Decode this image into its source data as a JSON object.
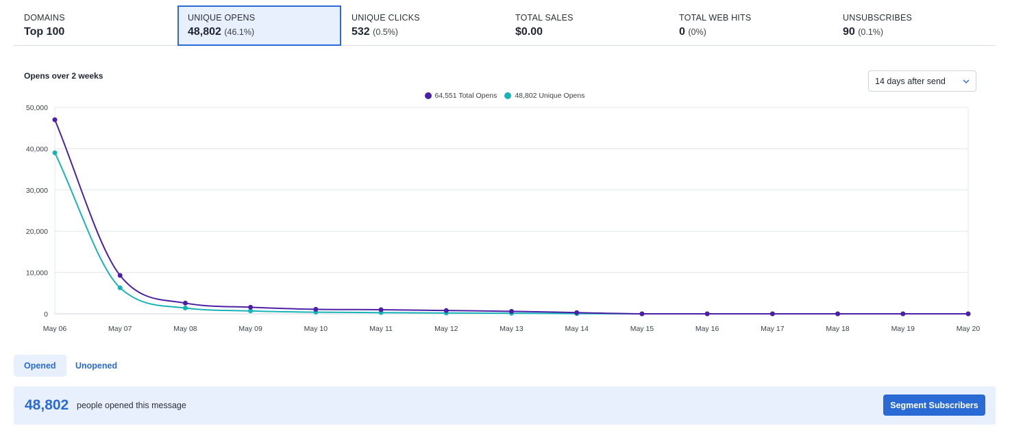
{
  "stats": [
    {
      "label": "DOMAINS",
      "value": "Top 100",
      "pct": ""
    },
    {
      "label": "UNIQUE OPENS",
      "value": "48,802",
      "pct": "(46.1%)"
    },
    {
      "label": "UNIQUE CLICKS",
      "value": "532",
      "pct": "(0.5%)"
    },
    {
      "label": "TOTAL SALES",
      "value": "$0.00",
      "pct": ""
    },
    {
      "label": "TOTAL WEB HITS",
      "value": "0",
      "pct": "(0%)"
    },
    {
      "label": "UNSUBSCRIBES",
      "value": "90",
      "pct": "(0.1%)"
    }
  ],
  "active_stat": "UNIQUE OPENS",
  "chart_panel": {
    "title": "Opens over 2 weeks",
    "range_select": {
      "selected": "14 days after send",
      "icon": "chevron-down-icon"
    }
  },
  "chart_data": {
    "type": "line",
    "x": [
      "May 06",
      "May 07",
      "May 08",
      "May 09",
      "May 10",
      "May 11",
      "May 12",
      "May 13",
      "May 14",
      "May 15",
      "May 16",
      "May 17",
      "May 18",
      "May 19",
      "May 20"
    ],
    "series": [
      {
        "name": "64,551 Total Opens",
        "color": "#4b1fa6",
        "values": [
          47000,
          9300,
          2600,
          1600,
          1100,
          1000,
          800,
          600,
          300,
          0,
          0,
          0,
          0,
          0,
          0
        ]
      },
      {
        "name": "48,802 Unique Opens",
        "color": "#17b3b8",
        "values": [
          39000,
          6300,
          1400,
          700,
          400,
          300,
          200,
          150,
          50,
          0,
          0,
          0,
          0,
          0,
          0
        ]
      }
    ],
    "yticks": [
      0,
      10000,
      20000,
      30000,
      40000,
      50000
    ],
    "ytick_labels": [
      "0",
      "10,000",
      "20,000",
      "30,000",
      "40,000",
      "50,000"
    ],
    "ylim": [
      0,
      50000
    ],
    "grid": true,
    "legend_position": "top-center"
  },
  "tabs": [
    {
      "label": "Opened",
      "active": true
    },
    {
      "label": "Unopened",
      "active": false
    }
  ],
  "summary": {
    "count": "48,802",
    "text": "people opened this message",
    "button_label": "Segment Subscribers"
  }
}
